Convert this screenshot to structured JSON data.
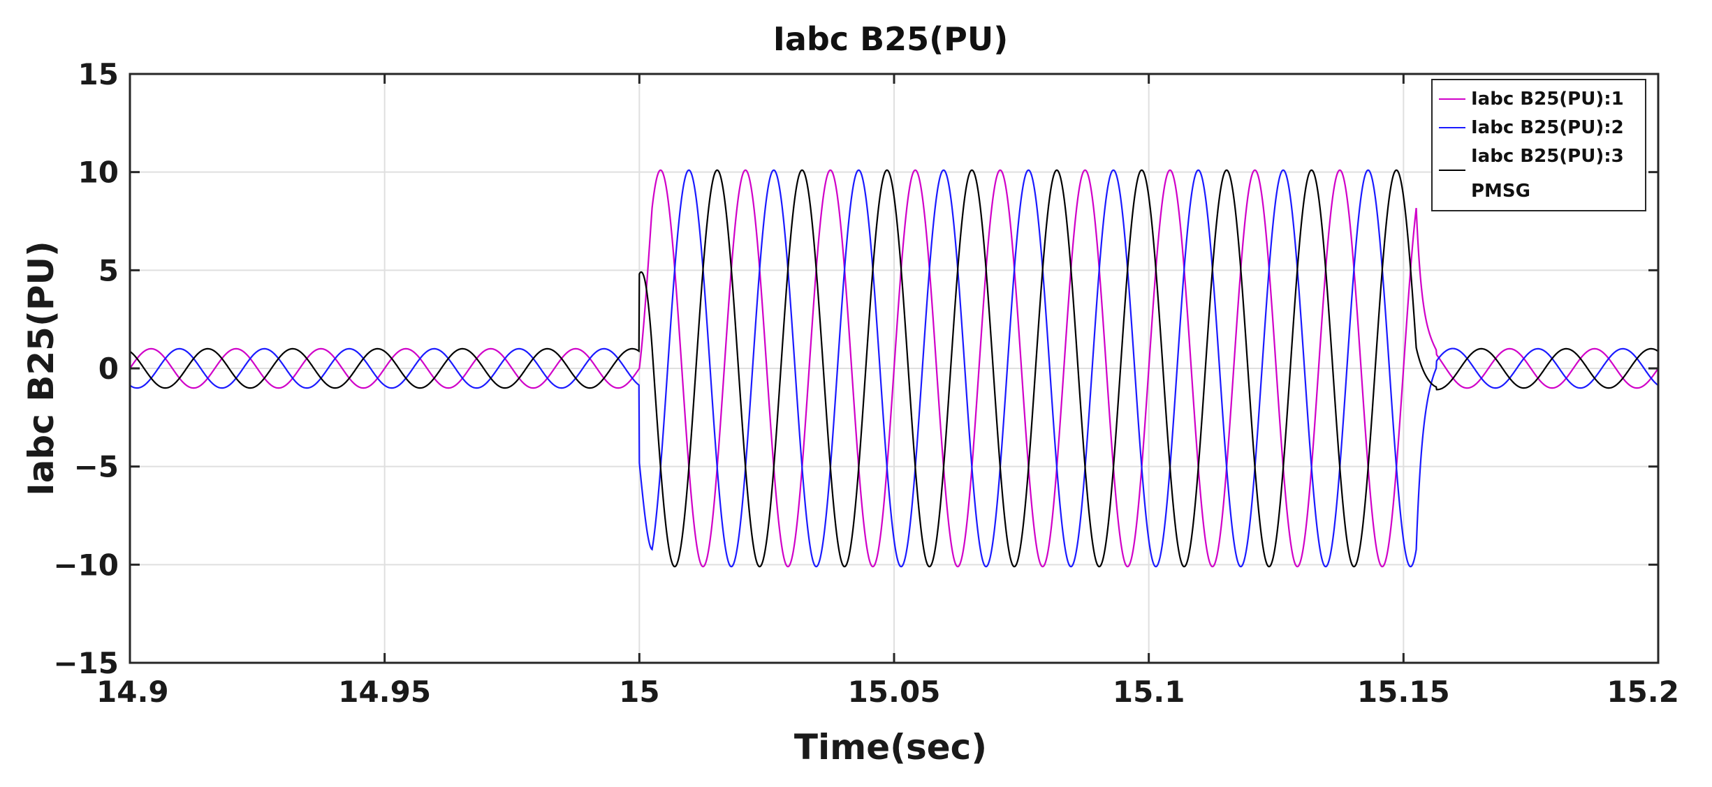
{
  "chart_data": {
    "type": "line",
    "title": "Iabc B25(PU)",
    "xlabel": "Time(sec)",
    "ylabel": "Iabc B25(PU)",
    "xlim": [
      14.9,
      15.2
    ],
    "ylim": [
      -15,
      15
    ],
    "xticks": [
      14.9,
      14.95,
      15,
      15.05,
      15.1,
      15.15,
      15.2
    ],
    "xtick_labels": [
      "14.9",
      "14.95",
      "15",
      "15.05",
      "15.1",
      "15.15",
      "15.2"
    ],
    "yticks": [
      -15,
      -10,
      -5,
      0,
      5,
      10,
      15
    ],
    "ytick_labels": [
      "−15",
      "−10",
      "−5",
      "0",
      "5",
      "10",
      "15"
    ],
    "grid": true,
    "legend_position": "top-right",
    "legend_title": "PMSG",
    "fault": {
      "start": 15.0,
      "end": 15.1525,
      "pre_post_amplitude": 1.0,
      "fault_amplitude": 10.1,
      "frequency_hz": 60
    },
    "series": [
      {
        "name": "Iabc B25(PU):1",
        "color": "#d000c8",
        "phase_deg": 0
      },
      {
        "name": "Iabc B25(PU):2",
        "color": "#1a1aff",
        "phase_deg": -120
      },
      {
        "name": "Iabc B25(PU):3",
        "color": "#000000",
        "phase_deg": 120
      }
    ]
  }
}
